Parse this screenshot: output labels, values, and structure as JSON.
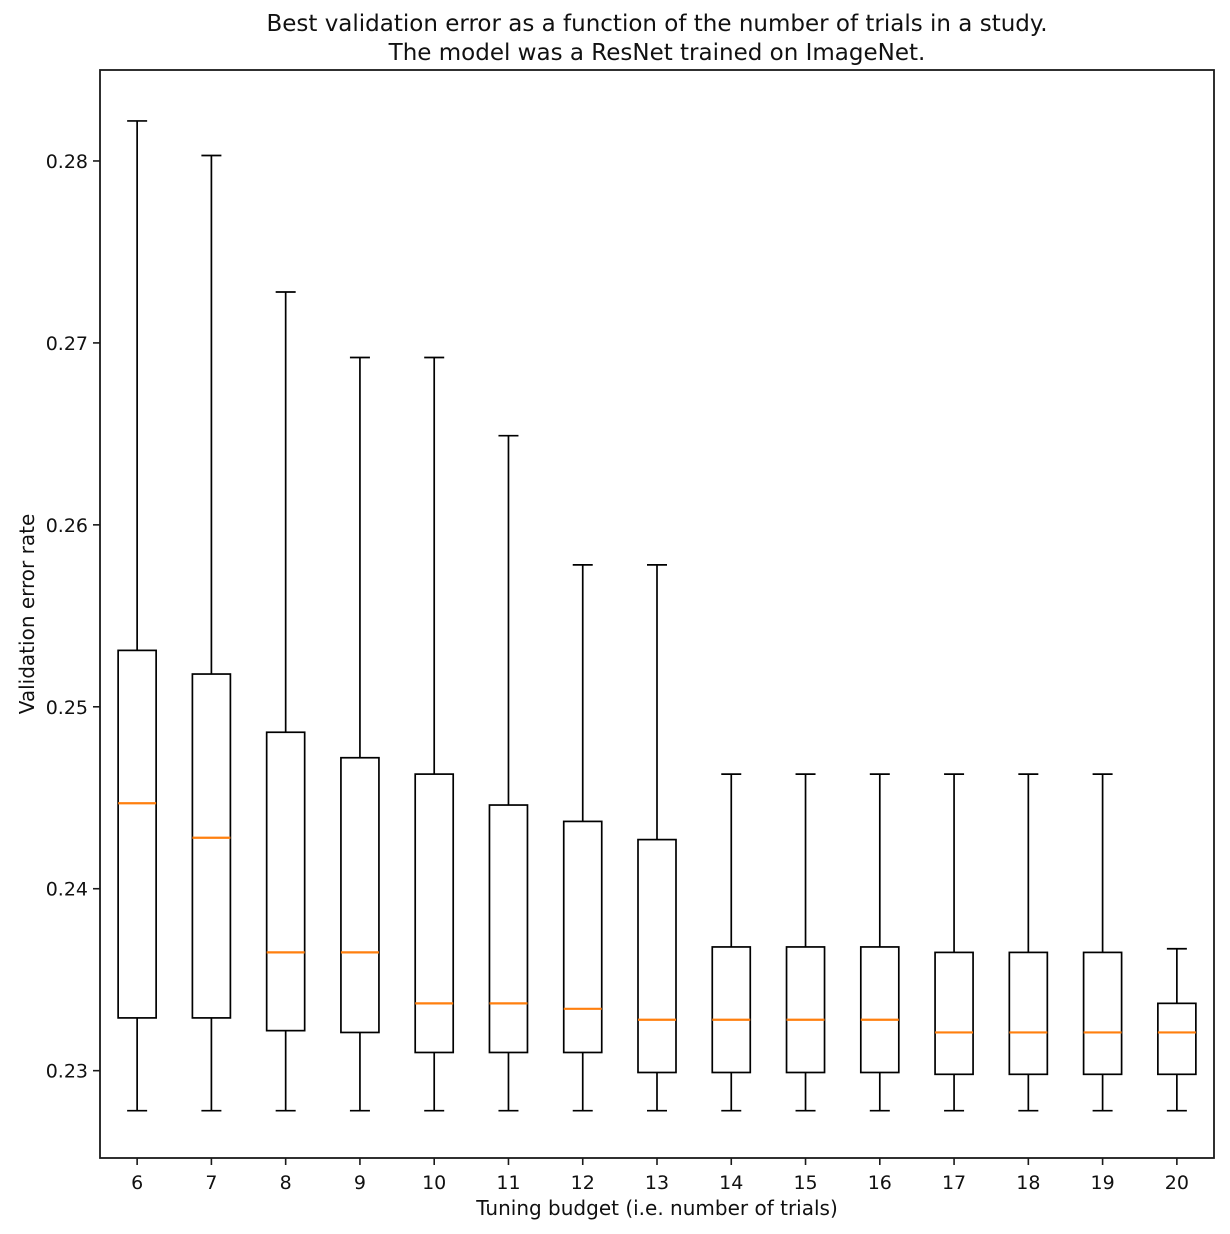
{
  "figure": {
    "title_line1": "Best validation error as a function of the number of trials in a study.",
    "title_line2": "The model was a ResNet trained on ImageNet."
  },
  "chart_data": {
    "type": "boxplot",
    "title": "Best validation error as a function of the number of trials in a study.\nThe model was a ResNet trained on ImageNet.",
    "xlabel": "Tuning budget (i.e. number of trials)",
    "ylabel": "Validation error rate",
    "grid": false,
    "legend": "none",
    "categories": [
      6,
      7,
      8,
      9,
      10,
      11,
      12,
      13,
      14,
      15,
      16,
      17,
      18,
      19,
      20
    ],
    "xlim": [
      5.5,
      20.5
    ],
    "ylim": [
      0.2252,
      0.285
    ],
    "yticks": [
      0.23,
      0.24,
      0.25,
      0.26,
      0.27,
      0.28
    ],
    "ytick_labels": [
      "0.23",
      "0.24",
      "0.25",
      "0.26",
      "0.27",
      "0.28"
    ],
    "boxes": [
      {
        "trials": 6,
        "whisker_low": 0.2278,
        "q1": 0.2329,
        "median": 0.2447,
        "q3": 0.2531,
        "whisker_high": 0.2822
      },
      {
        "trials": 7,
        "whisker_low": 0.2278,
        "q1": 0.2329,
        "median": 0.2428,
        "q3": 0.2518,
        "whisker_high": 0.2803
      },
      {
        "trials": 8,
        "whisker_low": 0.2278,
        "q1": 0.2322,
        "median": 0.2365,
        "q3": 0.2486,
        "whisker_high": 0.2728
      },
      {
        "trials": 9,
        "whisker_low": 0.2278,
        "q1": 0.2321,
        "median": 0.2365,
        "q3": 0.2472,
        "whisker_high": 0.2692
      },
      {
        "trials": 10,
        "whisker_low": 0.2278,
        "q1": 0.231,
        "median": 0.2337,
        "q3": 0.2463,
        "whisker_high": 0.2692
      },
      {
        "trials": 11,
        "whisker_low": 0.2278,
        "q1": 0.231,
        "median": 0.2337,
        "q3": 0.2446,
        "whisker_high": 0.2649
      },
      {
        "trials": 12,
        "whisker_low": 0.2278,
        "q1": 0.231,
        "median": 0.2334,
        "q3": 0.2437,
        "whisker_high": 0.2578
      },
      {
        "trials": 13,
        "whisker_low": 0.2278,
        "q1": 0.2299,
        "median": 0.2328,
        "q3": 0.2427,
        "whisker_high": 0.2578
      },
      {
        "trials": 14,
        "whisker_low": 0.2278,
        "q1": 0.2299,
        "median": 0.2328,
        "q3": 0.2368,
        "whisker_high": 0.2463
      },
      {
        "trials": 15,
        "whisker_low": 0.2278,
        "q1": 0.2299,
        "median": 0.2328,
        "q3": 0.2368,
        "whisker_high": 0.2463
      },
      {
        "trials": 16,
        "whisker_low": 0.2278,
        "q1": 0.2299,
        "median": 0.2328,
        "q3": 0.2368,
        "whisker_high": 0.2463
      },
      {
        "trials": 17,
        "whisker_low": 0.2278,
        "q1": 0.2298,
        "median": 0.2321,
        "q3": 0.2365,
        "whisker_high": 0.2463
      },
      {
        "trials": 18,
        "whisker_low": 0.2278,
        "q1": 0.2298,
        "median": 0.2321,
        "q3": 0.2365,
        "whisker_high": 0.2463
      },
      {
        "trials": 19,
        "whisker_low": 0.2278,
        "q1": 0.2298,
        "median": 0.2321,
        "q3": 0.2365,
        "whisker_high": 0.2463
      },
      {
        "trials": 20,
        "whisker_low": 0.2278,
        "q1": 0.2298,
        "median": 0.2321,
        "q3": 0.2337,
        "whisker_high": 0.2367
      }
    ],
    "colors": {
      "box_line": "#000000",
      "median": "#ff7f0e",
      "spine": "#1a1a1a",
      "background": "#ffffff"
    }
  }
}
